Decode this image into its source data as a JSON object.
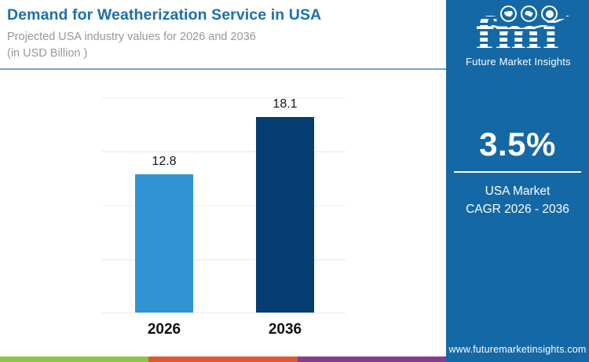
{
  "header": {
    "title": "Demand for Weatherization Service in USA",
    "subtitle": "Projected USA industry values for 2026 and 2036",
    "unit_note": "(in USD Billion )"
  },
  "chart_data": {
    "type": "bar",
    "title": "Demand for Weatherization Service in USA",
    "subtitle": "Projected USA industry values for 2026 and 2036 (in USD Billion)",
    "categories": [
      "2026",
      "2036"
    ],
    "values": [
      12.8,
      18.1
    ],
    "value_labels": [
      "12.8",
      "18.1"
    ],
    "unit": "USD Billion",
    "xlabel": "",
    "ylabel": "",
    "ylim": [
      0,
      20
    ],
    "gridlines": true,
    "gridline_interval": 5,
    "legend": false,
    "bar_colors": [
      "#3094d2",
      "#063d73"
    ]
  },
  "sidebar": {
    "background": "#1468a6",
    "logo": {
      "text": "fmi",
      "tagline": "Future Market Insights"
    },
    "stat_value": "3.5%",
    "stat_label_line1": "USA Market",
    "stat_label_line2": "CAGR 2026 - 2036",
    "website": "www.futuremarketinsights.com"
  },
  "footer": {
    "stripe_colors": [
      "#8dc63f",
      "#e4572e",
      "#8b3a92"
    ]
  }
}
